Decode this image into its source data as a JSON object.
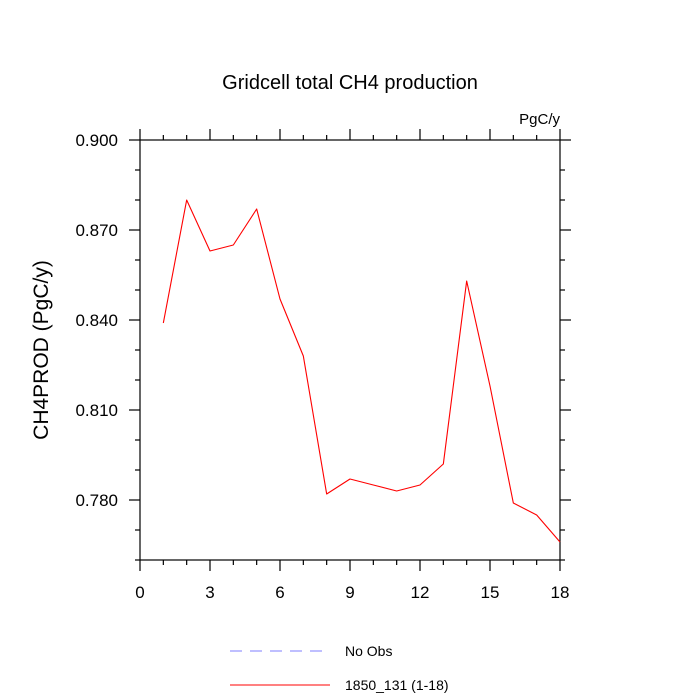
{
  "chart_data": {
    "type": "line",
    "title": "Gridcell total CH4 production",
    "units_label": "PgC/y",
    "ylabel": "CH4PROD  (PgC/y)",
    "xlabel": "",
    "xlim": [
      0,
      18
    ],
    "ylim": [
      0.76,
      0.9
    ],
    "x_ticks": [
      0,
      3,
      6,
      9,
      12,
      15,
      18
    ],
    "x_tick_labels": [
      "0",
      "3",
      "6",
      "9",
      "12",
      "15",
      "18"
    ],
    "y_ticks": [
      0.78,
      0.81,
      0.84,
      0.87,
      0.9
    ],
    "y_tick_labels": [
      "0.780",
      "0.810",
      "0.840",
      "0.870",
      "0.900"
    ],
    "grid": false,
    "legend_position": "bottom",
    "series": [
      {
        "name": "No Obs",
        "color": "#7f7fff",
        "dash": "dashed",
        "x": [],
        "values": []
      },
      {
        "name": "1850_131 (1-18)",
        "color": "#ff0000",
        "dash": "solid",
        "x": [
          1,
          2,
          3,
          4,
          5,
          6,
          7,
          8,
          9,
          10,
          11,
          12,
          13,
          14,
          15,
          16,
          17,
          18
        ],
        "values": [
          0.839,
          0.88,
          0.863,
          0.865,
          0.877,
          0.847,
          0.828,
          0.782,
          0.787,
          0.785,
          0.783,
          0.785,
          0.792,
          0.853,
          0.818,
          0.779,
          0.775,
          0.766
        ]
      }
    ]
  }
}
